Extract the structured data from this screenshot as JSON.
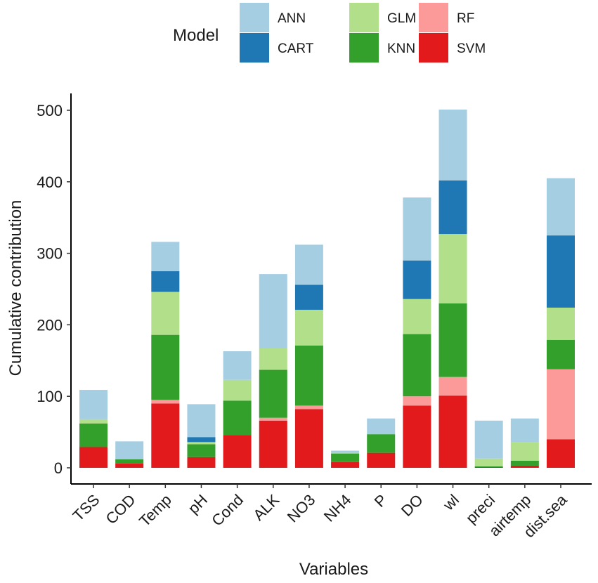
{
  "legend": {
    "title": "Model",
    "entries": [
      {
        "name": "ANN",
        "color": "#A6CEE3"
      },
      {
        "name": "CART",
        "color": "#1F78B4"
      },
      {
        "name": "GLM",
        "color": "#B2DF8A"
      },
      {
        "name": "KNN",
        "color": "#33A02C"
      },
      {
        "name": "RF",
        "color": "#FB9A99"
      },
      {
        "name": "SVM",
        "color": "#E31A1C"
      }
    ]
  },
  "chart_data": {
    "type": "bar",
    "stacked": true,
    "title": "",
    "xlabel": "Variables",
    "ylabel": "Cumulative contribution",
    "ylim": [
      0,
      520
    ],
    "yticks": [
      0,
      100,
      200,
      300,
      400,
      500
    ],
    "legend_position": "top",
    "stack_order_bottom_to_top": [
      "SVM",
      "RF",
      "KNN",
      "GLM",
      "CART",
      "ANN"
    ],
    "categories": [
      "TSS",
      "COD",
      "Temp",
      "pH",
      "Cond",
      "ALK",
      "NO3",
      "NH4",
      "P",
      "DO",
      "wl",
      "preci",
      "airtemp",
      "dist.sea"
    ],
    "series": [
      {
        "name": "SVM",
        "color": "#E31A1C",
        "values": [
          29,
          6,
          90,
          15,
          46,
          66,
          82,
          8,
          21,
          87,
          101,
          1,
          3,
          40
        ]
      },
      {
        "name": "RF",
        "color": "#FB9A99",
        "values": [
          0,
          0,
          5,
          0,
          0,
          4,
          5,
          0,
          0,
          13,
          26,
          0,
          0,
          98
        ]
      },
      {
        "name": "KNN",
        "color": "#33A02C",
        "values": [
          33,
          6,
          91,
          18,
          48,
          67,
          84,
          12,
          26,
          87,
          103,
          1,
          7,
          41
        ]
      },
      {
        "name": "GLM",
        "color": "#B2DF8A",
        "values": [
          6,
          0,
          60,
          3,
          29,
          30,
          50,
          1,
          0,
          49,
          97,
          11,
          26,
          45
        ]
      },
      {
        "name": "CART",
        "color": "#1F78B4",
        "values": [
          0,
          0,
          29,
          7,
          0,
          0,
          35,
          0,
          0,
          54,
          75,
          0,
          0,
          101
        ]
      },
      {
        "name": "ANN",
        "color": "#A6CEE3",
        "values": [
          41,
          25,
          41,
          46,
          40,
          104,
          56,
          3,
          22,
          88,
          99,
          53,
          33,
          80
        ]
      }
    ]
  }
}
